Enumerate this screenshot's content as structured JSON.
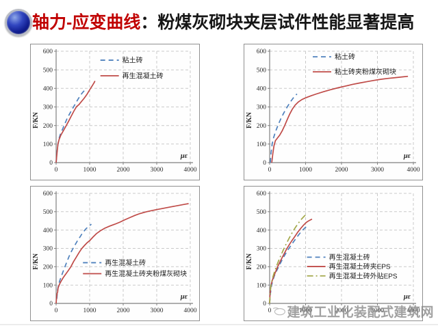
{
  "title": {
    "prefix": "轴力-应变曲线",
    "separator": "：",
    "rest": "粉煤灰砌块夹层试件性能显著提高"
  },
  "watermark": {
    "text": "建筑工业化装配式建筑网"
  },
  "colors": {
    "blue": "#4f81bd",
    "red": "#bf4a47",
    "olive": "#a3a84a",
    "title_red": "#c00000"
  },
  "chart_data": [
    {
      "type": "line",
      "title": "",
      "xlabel": "με",
      "ylabel": "F/KN",
      "xlim": [
        0,
        4000
      ],
      "ylim": [
        0,
        600
      ],
      "xticks": [
        0,
        1000,
        2000,
        3000,
        4000
      ],
      "yticks": [
        0,
        100,
        200,
        300,
        400,
        500,
        600
      ],
      "grid": true,
      "legend": {
        "fx": 0.33,
        "fy": 0.08,
        "dy": 0.14
      },
      "series": [
        {
          "name": "粘土砖",
          "color": "blue",
          "dash": "dashed",
          "x": [
            0,
            25,
            50,
            80,
            120,
            180,
            250,
            320,
            400,
            480,
            560,
            640,
            720,
            800,
            840
          ],
          "y": [
            0,
            55,
            95,
            125,
            150,
            175,
            205,
            235,
            262,
            288,
            312,
            338,
            362,
            380,
            388
          ]
        },
        {
          "name": "再生混凝土砖",
          "color": "red",
          "dash": "solid",
          "x": [
            0,
            30,
            55,
            90,
            140,
            210,
            290,
            370,
            450,
            530,
            610,
            680,
            760,
            840,
            920,
            1000,
            1080,
            1130,
            1160
          ],
          "y": [
            0,
            60,
            100,
            125,
            148,
            170,
            196,
            222,
            250,
            278,
            302,
            312,
            330,
            348,
            368,
            392,
            415,
            430,
            440
          ]
        }
      ]
    },
    {
      "type": "line",
      "title": "",
      "xlabel": "με",
      "ylabel": "F/KN",
      "xlim": [
        0,
        4000
      ],
      "ylim": [
        0,
        600
      ],
      "xticks": [
        0,
        1000,
        2000,
        3000,
        4000
      ],
      "yticks": [
        0,
        100,
        200,
        300,
        400,
        500,
        600
      ],
      "grid": true,
      "legend": {
        "fx": 0.3,
        "fy": 0.05,
        "dy": 0.135
      },
      "series": [
        {
          "name": "粘土砖",
          "color": "blue",
          "dash": "dashed",
          "x": [
            20,
            40,
            70,
            110,
            170,
            240,
            320,
            400,
            490,
            580,
            670,
            760
          ],
          "y": [
            0,
            55,
            100,
            135,
            170,
            205,
            240,
            270,
            300,
            328,
            352,
            370
          ]
        },
        {
          "name": "粘土砖夹粉煤灰砌块",
          "color": "red",
          "dash": "solid",
          "x": [
            60,
            90,
            120,
            160,
            220,
            280,
            350,
            420,
            490,
            560,
            630,
            710,
            800,
            900,
            1000,
            1150,
            1300,
            1500,
            1700,
            1900,
            2100,
            2300,
            2500,
            2700,
            2900,
            3100,
            3300,
            3500,
            3700,
            3850
          ],
          "y": [
            0,
            50,
            90,
            118,
            133,
            148,
            172,
            200,
            232,
            262,
            288,
            310,
            327,
            340,
            349,
            360,
            370,
            382,
            393,
            403,
            412,
            421,
            429,
            436,
            443,
            449,
            454,
            458,
            462,
            465
          ]
        }
      ]
    },
    {
      "type": "line",
      "title": "",
      "xlabel": "με",
      "ylabel": "F/KN",
      "xlim": [
        0,
        4000
      ],
      "ylim": [
        0,
        600
      ],
      "xticks": [
        0,
        1000,
        2000,
        3000,
        4000
      ],
      "yticks": [
        0,
        100,
        200,
        300,
        400,
        500,
        600
      ],
      "grid": true,
      "legend": {
        "fx": 0.2,
        "fy": 0.63,
        "dy": 0.1
      },
      "series": [
        {
          "name": "再生混凝土砖",
          "color": "blue",
          "dash": "dashed",
          "x": [
            20,
            40,
            70,
            110,
            160,
            230,
            310,
            390,
            470,
            550,
            630,
            710,
            790,
            880,
            970,
            1050
          ],
          "y": [
            25,
            70,
            100,
            125,
            150,
            185,
            222,
            258,
            288,
            315,
            340,
            362,
            385,
            405,
            420,
            432
          ]
        },
        {
          "name": "再生混凝土砖夹粉煤灰砌块",
          "color": "red",
          "dash": "solid",
          "x": [
            0,
            15,
            30,
            45,
            60,
            80,
            110,
            150,
            210,
            280,
            360,
            440,
            520,
            600,
            680,
            760,
            840,
            920,
            1000,
            1100,
            1200,
            1320,
            1450,
            1600,
            1750,
            1900,
            2050,
            2200,
            2350,
            2500,
            2700,
            2900,
            3150,
            3400,
            3650,
            3850,
            3950
          ],
          "y": [
            0,
            35,
            55,
            62,
            85,
            95,
            108,
            122,
            140,
            158,
            178,
            200,
            228,
            252,
            276,
            298,
            315,
            330,
            342,
            362,
            380,
            396,
            410,
            422,
            432,
            443,
            456,
            468,
            480,
            490,
            500,
            508,
            517,
            526,
            534,
            541,
            544
          ]
        }
      ]
    },
    {
      "type": "line",
      "title": "",
      "xlabel": "με",
      "ylabel": "F/KN",
      "xlim": [
        0,
        4000
      ],
      "ylim": [
        0,
        600
      ],
      "xticks": [
        0,
        1000,
        2000,
        3000,
        4000
      ],
      "yticks": [
        0,
        100,
        200,
        300,
        400,
        500,
        600
      ],
      "grid": true,
      "legend": {
        "fx": 0.26,
        "fy": 0.58,
        "dy": 0.085
      },
      "series": [
        {
          "name": "再生混凝土砖",
          "color": "blue",
          "dash": "dashed",
          "x": [
            0,
            20,
            45,
            80,
            130,
            200,
            280,
            360,
            440,
            520,
            600,
            680,
            760,
            840,
            920,
            1000,
            1080
          ],
          "y": [
            0,
            50,
            90,
            120,
            150,
            180,
            212,
            242,
            270,
            295,
            318,
            340,
            362,
            382,
            400,
            415,
            428
          ]
        },
        {
          "name": "再生混凝土砖夹EPS",
          "color": "red",
          "dash": "solid",
          "x": [
            0,
            10,
            25,
            50,
            90,
            150,
            220,
            300,
            380,
            460,
            540,
            620,
            700,
            780,
            860,
            940,
            1020,
            1100,
            1180
          ],
          "y": [
            0,
            45,
            80,
            108,
            135,
            165,
            198,
            232,
            262,
            292,
            318,
            342,
            365,
            388,
            408,
            426,
            442,
            452,
            460
          ]
        },
        {
          "name": "再生混凝土砖外贴EPS",
          "color": "olive",
          "dash": "dashdot",
          "x": [
            0,
            15,
            35,
            65,
            110,
            170,
            240,
            320,
            400,
            480,
            560,
            640,
            720,
            800,
            880,
            960,
            1030
          ],
          "y": [
            0,
            55,
            95,
            125,
            158,
            192,
            228,
            265,
            300,
            332,
            362,
            390,
            415,
            438,
            458,
            475,
            488
          ]
        }
      ]
    }
  ]
}
